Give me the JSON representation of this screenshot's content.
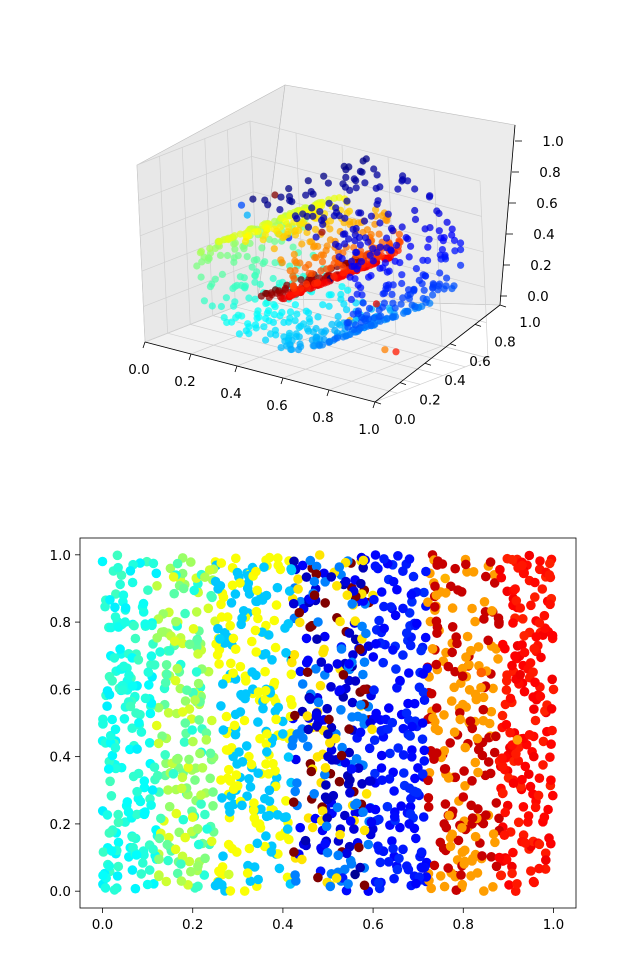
{
  "chart_data": [
    {
      "type": "scatter",
      "projection": "3d",
      "title": "",
      "xlabel": "",
      "ylabel": "",
      "zlabel": "",
      "xlim": [
        0,
        1
      ],
      "ylim": [
        0,
        1
      ],
      "zlim": [
        0,
        1
      ],
      "xticks": [
        "0.0",
        "0.2",
        "0.4",
        "0.6",
        "0.8",
        "1.0"
      ],
      "yticks": [
        "0.0",
        "0.2",
        "0.4",
        "0.6",
        "0.8",
        "1.0"
      ],
      "zticks": [
        "0.0",
        "0.2",
        "0.4",
        "0.6",
        "0.8",
        "1.0"
      ],
      "grid": true,
      "colormap": "jet",
      "description": "",
      "points": [
        {
          "x": 0.02,
          "y": 0.1,
          "z": 0.5,
          "c": 0.3
        },
        {
          "x": 0.25,
          "y": 0.2,
          "z": 0.2,
          "c": 0.35
        },
        {
          "x": 0.45,
          "y": 0.1,
          "z": 0.05,
          "c": 0.7
        },
        {
          "x": 0.7,
          "y": 0.3,
          "z": 0.02,
          "c": 0.75
        },
        {
          "x": 0.9,
          "y": 0.6,
          "z": 0.15,
          "c": 0.85
        },
        {
          "x": 0.95,
          "y": 0.85,
          "z": 0.5,
          "c": 0.9
        },
        {
          "x": 0.75,
          "y": 0.9,
          "z": 0.85,
          "c": 0.97
        },
        {
          "x": 0.5,
          "y": 0.8,
          "z": 0.95,
          "c": 1.0
        },
        {
          "x": 0.3,
          "y": 0.7,
          "z": 0.8,
          "c": 0.2
        },
        {
          "x": 0.4,
          "y": 0.5,
          "z": 0.6,
          "c": 0.15
        },
        {
          "x": 0.55,
          "y": 0.45,
          "z": 0.4,
          "c": 0.05
        },
        {
          "x": 0.6,
          "y": 0.55,
          "z": 0.45,
          "c": 0.0
        }
      ]
    },
    {
      "type": "scatter",
      "title": "",
      "xlabel": "",
      "ylabel": "",
      "xlim": [
        -0.05,
        1.05
      ],
      "ylim": [
        -0.05,
        1.05
      ],
      "xticks": [
        "0.0",
        "0.2",
        "0.4",
        "0.6",
        "0.8",
        "1.0"
      ],
      "yticks": [
        "0.0",
        "0.2",
        "0.4",
        "0.6",
        "0.8",
        "1.0"
      ],
      "grid": false,
      "colormap": "jet",
      "points": [
        {
          "x": 0.0,
          "y": 0.98,
          "c": 0.37
        },
        {
          "x": 0.01,
          "y": 0.55,
          "c": 0.36
        },
        {
          "x": 0.02,
          "y": 0.12,
          "c": 0.38
        },
        {
          "x": 0.05,
          "y": 0.8,
          "c": 0.4
        },
        {
          "x": 0.08,
          "y": 0.35,
          "c": 0.42
        },
        {
          "x": 0.1,
          "y": 0.02,
          "c": 0.39
        },
        {
          "x": 0.14,
          "y": 0.62,
          "c": 0.45
        },
        {
          "x": 0.18,
          "y": 0.9,
          "c": 0.48
        },
        {
          "x": 0.2,
          "y": 0.22,
          "c": 0.6
        },
        {
          "x": 0.23,
          "y": 0.45,
          "c": 0.55
        },
        {
          "x": 0.26,
          "y": 0.75,
          "c": 0.33
        },
        {
          "x": 0.28,
          "y": 0.05,
          "c": 0.58
        },
        {
          "x": 0.31,
          "y": 0.58,
          "c": 0.32
        },
        {
          "x": 0.34,
          "y": 0.95,
          "c": 0.63
        },
        {
          "x": 0.37,
          "y": 0.3,
          "c": 0.31
        },
        {
          "x": 0.42,
          "y": 0.68,
          "c": 0.65
        },
        {
          "x": 0.45,
          "y": 0.15,
          "c": 0.05
        },
        {
          "x": 0.47,
          "y": 0.88,
          "c": 1.0
        },
        {
          "x": 0.5,
          "y": 0.4,
          "c": 0.08
        },
        {
          "x": 0.53,
          "y": 0.72,
          "c": 0.25
        },
        {
          "x": 0.56,
          "y": 0.05,
          "c": 0.02
        },
        {
          "x": 0.58,
          "y": 0.6,
          "c": 0.97
        },
        {
          "x": 0.62,
          "y": 0.33,
          "c": 0.14
        },
        {
          "x": 0.65,
          "y": 0.82,
          "c": 0.12
        },
        {
          "x": 0.68,
          "y": 0.2,
          "c": 0.13
        },
        {
          "x": 0.71,
          "y": 0.5,
          "c": 0.12
        },
        {
          "x": 0.76,
          "y": 0.93,
          "c": 0.7
        },
        {
          "x": 0.8,
          "y": 0.28,
          "c": 0.92
        },
        {
          "x": 0.84,
          "y": 0.65,
          "c": 0.78
        },
        {
          "x": 0.88,
          "y": 0.1,
          "c": 0.88
        },
        {
          "x": 0.92,
          "y": 0.45,
          "c": 0.72
        },
        {
          "x": 0.95,
          "y": 0.85,
          "c": 0.86
        },
        {
          "x": 0.98,
          "y": 0.22,
          "c": 0.87
        },
        {
          "x": 1.0,
          "y": 0.6,
          "c": 0.85
        }
      ]
    }
  ]
}
